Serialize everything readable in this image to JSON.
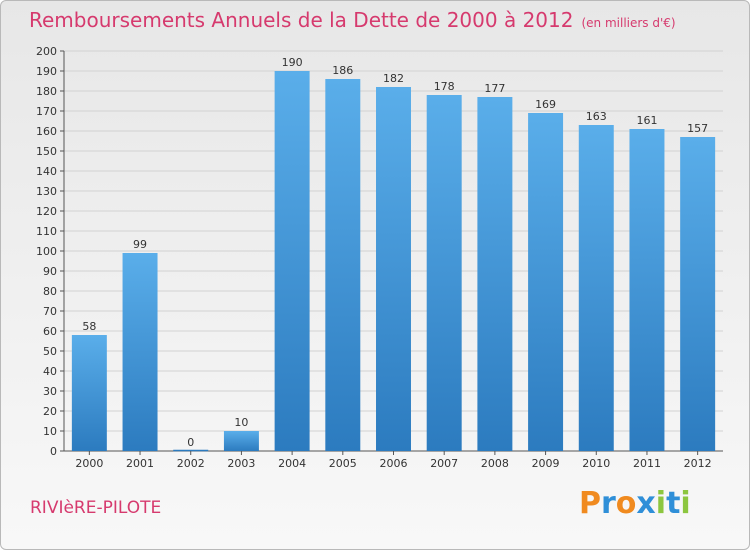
{
  "chart_data": {
    "type": "bar",
    "title": "Remboursements Annuels de la Dette de 2000 à 2012",
    "subtitle": "(en milliers d'€)",
    "categories": [
      "2000",
      "2001",
      "2002",
      "2003",
      "2004",
      "2005",
      "2006",
      "2007",
      "2008",
      "2009",
      "2010",
      "2011",
      "2012"
    ],
    "values": [
      58,
      99,
      0,
      10,
      190,
      186,
      182,
      178,
      177,
      169,
      163,
      161,
      157
    ],
    "ylim": [
      0,
      200
    ],
    "yticks": [
      0,
      10,
      20,
      30,
      40,
      50,
      60,
      70,
      80,
      90,
      100,
      110,
      120,
      130,
      140,
      150,
      160,
      170,
      180,
      190,
      200
    ],
    "grid": true,
    "bar_color_top": "#5aaeea",
    "bar_color_bottom": "#2c7bbf"
  },
  "footer": {
    "commune": "RIVIèRE-PILOTE",
    "logo_letters": [
      "P",
      "r",
      "o",
      "x",
      "i",
      "t",
      "i"
    ],
    "logo_colors": [
      "#f08a1f",
      "#2f8fd8",
      "#f08a1f",
      "#2f8fd8",
      "#8cc63f",
      "#2f8fd8",
      "#8cc63f"
    ]
  }
}
